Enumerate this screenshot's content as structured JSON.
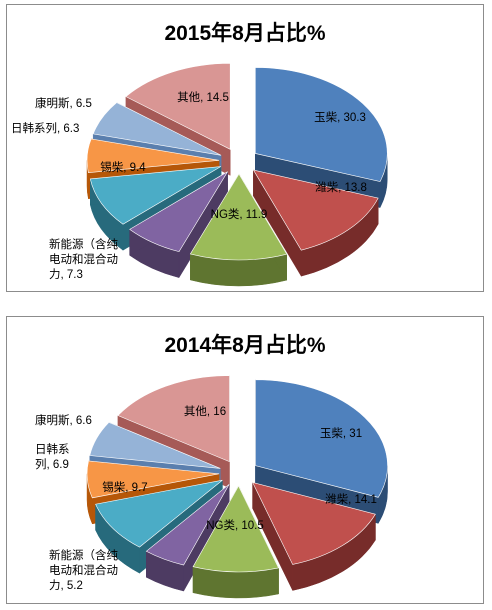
{
  "chart_data": [
    {
      "type": "pie",
      "title": "2015年8月占比%",
      "slices": [
        {
          "name": "玉柴",
          "value": 30.3,
          "label": "玉柴, 30.3",
          "color": "#4f81bd",
          "dark": "#2c4d75"
        },
        {
          "name": "潍柴",
          "value": 13.8,
          "label": "潍柴, 13.8",
          "color": "#c0504d",
          "dark": "#772c2a"
        },
        {
          "name": "NG类",
          "value": 11.9,
          "label": "NG类, 11.9",
          "color": "#9bbb59",
          "dark": "#5f7530"
        },
        {
          "name": "新能源（含纯电动和混合动力",
          "value": 7.3,
          "label_lines": [
            "新能源（含纯",
            "电动和混合动",
            "力, 7.3"
          ],
          "color": "#8064a2",
          "dark": "#4d3b62"
        },
        {
          "name": "锡柴",
          "value": 9.4,
          "label": "锡柴, 9.4",
          "color": "#4bacc6",
          "dark": "#276a7c"
        },
        {
          "name": "日韩系列",
          "value": 6.3,
          "label": "日韩系列, 6.3",
          "color": "#f79646",
          "dark": "#b65708"
        },
        {
          "name": "康明斯",
          "value": 6.5,
          "label": "康明斯, 6.5",
          "color": "#95b3d7",
          "dark": "#5a7fae"
        },
        {
          "name": "其他",
          "value": 14.5,
          "label": "其他, 14.5",
          "color": "#d99694",
          "dark": "#a65a57"
        }
      ]
    },
    {
      "type": "pie",
      "title": "2014年8月占比%",
      "slices": [
        {
          "name": "玉柴",
          "value": 31,
          "label": "玉柴, 31",
          "color": "#4f81bd",
          "dark": "#2c4d75"
        },
        {
          "name": "潍柴",
          "value": 14.1,
          "label": "潍柴, 14.1",
          "color": "#c0504d",
          "dark": "#772c2a"
        },
        {
          "name": "NG类",
          "value": 10.5,
          "label": "NG类, 10.5",
          "color": "#9bbb59",
          "dark": "#5f7530"
        },
        {
          "name": "新能源（含纯电动和混合动力",
          "value": 5.2,
          "label_lines": [
            "新能源（含纯",
            "电动和混合动",
            "力, 5.2"
          ],
          "color": "#8064a2",
          "dark": "#4d3b62"
        },
        {
          "name": "锡柴",
          "value": 9.7,
          "label": "锡柴, 9.7",
          "color": "#4bacc6",
          "dark": "#276a7c"
        },
        {
          "name": "日韩系列",
          "value": 6.9,
          "label_lines": [
            "日韩系",
            "列, 6.9"
          ],
          "color": "#f79646",
          "dark": "#b65708"
        },
        {
          "name": "康明斯",
          "value": 6.6,
          "label": "康明斯, 6.6",
          "color": "#95b3d7",
          "dark": "#5a7fae"
        },
        {
          "name": "其他",
          "value": 16,
          "label": "其他, 16",
          "color": "#d99694",
          "dark": "#a65a57"
        }
      ]
    }
  ]
}
